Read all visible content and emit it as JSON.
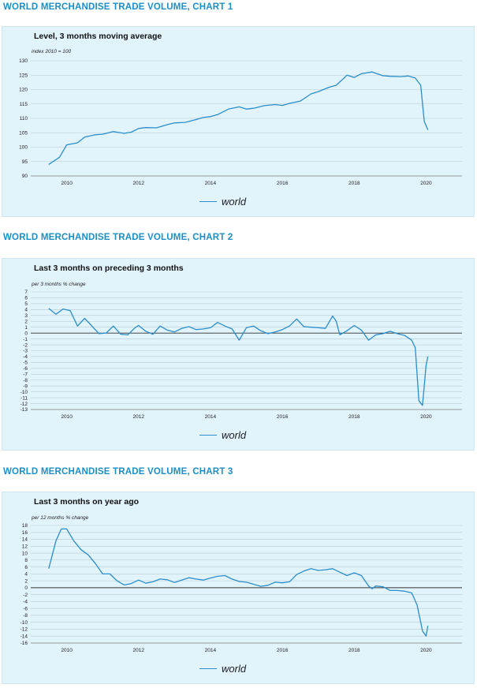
{
  "sections": [
    {
      "title": "WORLD MERCHANDISE TRADE VOLUME, CHART 1"
    },
    {
      "title": "WORLD MERCHANDISE TRADE VOLUME, CHART 2"
    },
    {
      "title": "WORLD MERCHANDISE TRADE VOLUME, CHART 3"
    }
  ],
  "colors": {
    "line": "#2a8ecb",
    "panel_bg": "#e1f3fb",
    "title": "#1a8fc9"
  },
  "chart_data": [
    {
      "type": "line",
      "title": "Level, 3 months moving average",
      "ylabel": "index 2010 = 100",
      "xlim": [
        2009.0,
        2021.0
      ],
      "ylim": [
        90,
        130
      ],
      "yticks": [
        90,
        95,
        100,
        105,
        110,
        115,
        120,
        125,
        130
      ],
      "xticks": [
        2010,
        2012,
        2014,
        2016,
        2018,
        2020
      ],
      "zero_line": false,
      "legend": "bottom-center",
      "series": [
        {
          "name": "world",
          "x": [
            2009.5,
            2009.8,
            2010.0,
            2010.3,
            2010.5,
            2010.8,
            2011.0,
            2011.3,
            2011.6,
            2011.8,
            2012.0,
            2012.2,
            2012.5,
            2012.8,
            2013.0,
            2013.3,
            2013.6,
            2013.8,
            2014.0,
            2014.2,
            2014.5,
            2014.8,
            2015.0,
            2015.2,
            2015.5,
            2015.8,
            2016.0,
            2016.2,
            2016.5,
            2016.8,
            2017.0,
            2017.3,
            2017.5,
            2017.8,
            2018.0,
            2018.2,
            2018.5,
            2018.8,
            2019.0,
            2019.3,
            2019.5,
            2019.7,
            2019.85,
            2019.95,
            2020.05
          ],
          "y": [
            94,
            96.5,
            100.8,
            101.5,
            103.5,
            104.3,
            104.5,
            105.4,
            104.8,
            105.2,
            106.5,
            106.8,
            106.7,
            107.8,
            108.4,
            108.6,
            109.6,
            110.3,
            110.6,
            111.3,
            113.2,
            114,
            113.2,
            113.5,
            114.4,
            114.8,
            114.5,
            115.2,
            116,
            118.5,
            119.3,
            120.8,
            121.5,
            125,
            124.2,
            125.5,
            126.1,
            124.8,
            124.6,
            124.5,
            124.7,
            124,
            121.5,
            109,
            106
          ]
        }
      ]
    },
    {
      "type": "line",
      "title": "Last 3 months on preceding 3 months",
      "ylabel": "per 3 months % change",
      "xlim": [
        2009.0,
        2021.0
      ],
      "ylim": [
        -13,
        7
      ],
      "yticks": [
        -13,
        -12,
        -11,
        -10,
        -9,
        -8,
        -7,
        -6,
        -5,
        -4,
        -3,
        -2,
        -1,
        0,
        1,
        2,
        3,
        4,
        5,
        6,
        7
      ],
      "xticks": [
        2010,
        2012,
        2014,
        2016,
        2018,
        2020
      ],
      "zero_line": true,
      "legend": "bottom-center",
      "series": [
        {
          "name": "world",
          "x": [
            2009.5,
            2009.7,
            2009.9,
            2010.1,
            2010.3,
            2010.5,
            2010.7,
            2010.9,
            2011.1,
            2011.3,
            2011.5,
            2011.7,
            2011.9,
            2012.0,
            2012.2,
            2012.4,
            2012.6,
            2012.8,
            2013.0,
            2013.2,
            2013.4,
            2013.6,
            2013.8,
            2014.0,
            2014.2,
            2014.4,
            2014.6,
            2014.8,
            2015.0,
            2015.2,
            2015.4,
            2015.6,
            2015.8,
            2016.0,
            2016.2,
            2016.4,
            2016.6,
            2016.8,
            2017.0,
            2017.2,
            2017.4,
            2017.5,
            2017.6,
            2017.8,
            2018.0,
            2018.2,
            2018.4,
            2018.6,
            2018.8,
            2019.0,
            2019.2,
            2019.4,
            2019.6,
            2019.7,
            2019.8,
            2019.9,
            2020.0,
            2020.05
          ],
          "y": [
            4.2,
            3.2,
            4.1,
            3.8,
            1.2,
            2.5,
            1.2,
            -0.1,
            0,
            1.2,
            -0.2,
            -0.3,
            0.9,
            1.3,
            0.3,
            -0.2,
            1.2,
            0.5,
            0.2,
            0.8,
            1.1,
            0.6,
            0.7,
            0.9,
            1.8,
            1.2,
            0.7,
            -1.2,
            0.9,
            1.2,
            0.4,
            -0.1,
            0.2,
            0.6,
            1.2,
            2.4,
            1.1,
            1.0,
            0.9,
            0.8,
            2.9,
            2.0,
            -0.3,
            0.4,
            1.3,
            0.5,
            -1.2,
            -0.3,
            -0.1,
            0.3,
            -0.1,
            -0.4,
            -1.2,
            -2.5,
            -11.5,
            -12.3,
            -5.5,
            -4
          ]
        }
      ]
    },
    {
      "type": "line",
      "title": "Last 3 months on year ago",
      "ylabel": "per 12 months % change",
      "xlim": [
        2009.0,
        2021.0
      ],
      "ylim": [
        -16,
        18
      ],
      "yticks": [
        -16,
        -14,
        -12,
        -10,
        -8,
        -6,
        -4,
        -2,
        0,
        2,
        4,
        6,
        8,
        10,
        12,
        14,
        16,
        18
      ],
      "xticks": [
        2010,
        2012,
        2014,
        2016,
        2018,
        2020
      ],
      "zero_line": true,
      "legend": "bottom-center",
      "series": [
        {
          "name": "world",
          "x": [
            2009.5,
            2009.7,
            2009.85,
            2010.0,
            2010.2,
            2010.4,
            2010.6,
            2010.8,
            2011.0,
            2011.2,
            2011.4,
            2011.6,
            2011.8,
            2012.0,
            2012.2,
            2012.4,
            2012.6,
            2012.8,
            2013.0,
            2013.2,
            2013.4,
            2013.6,
            2013.8,
            2014.0,
            2014.2,
            2014.4,
            2014.6,
            2014.8,
            2015.0,
            2015.2,
            2015.4,
            2015.6,
            2015.8,
            2016.0,
            2016.2,
            2016.4,
            2016.6,
            2016.8,
            2017.0,
            2017.2,
            2017.4,
            2017.6,
            2017.8,
            2018.0,
            2018.2,
            2018.4,
            2018.5,
            2018.6,
            2018.8,
            2019.0,
            2019.2,
            2019.4,
            2019.6,
            2019.75,
            2019.9,
            2020.0,
            2020.05
          ],
          "y": [
            5.5,
            13.5,
            17,
            17,
            13.5,
            11,
            9.5,
            7,
            4,
            4,
            2,
            0.8,
            1.2,
            2.2,
            1.3,
            1.7,
            2.5,
            2.3,
            1.5,
            2.2,
            2.9,
            2.5,
            2.2,
            2.8,
            3.3,
            3.5,
            2.5,
            1.8,
            1.6,
            1.0,
            0.4,
            0.7,
            1.6,
            1.4,
            1.7,
            3.8,
            4.8,
            5.5,
            5.0,
            5.2,
            5.5,
            4.5,
            3.5,
            4.3,
            3.5,
            0.5,
            -0.3,
            0.5,
            0.3,
            -0.8,
            -0.8,
            -1.0,
            -1.5,
            -5,
            -12.5,
            -14,
            -11
          ]
        }
      ]
    }
  ]
}
